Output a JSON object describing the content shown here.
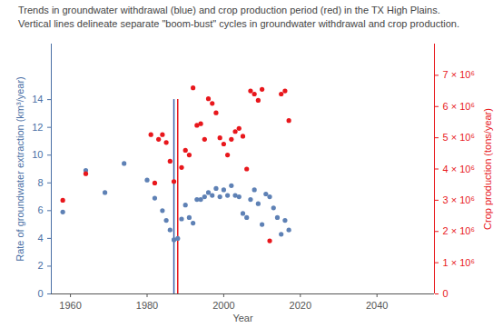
{
  "chart_data": {
    "type": "scatter",
    "title": "Trends in groundwater withdrawal (blue) and crop production period (red) in the TX High Plains.",
    "subtitle": "Vertical lines delineate separate \"boom-bust\" cycles in groundwater withdrawal and crop production.",
    "x_label": "Year",
    "y_label": "Rate of groundwater extraction (km³/year)",
    "y2_label": "Crop production (tons/year)",
    "xlim": [
      1955,
      2055
    ],
    "xticks": [
      1960,
      1980,
      2000,
      2020,
      2040
    ],
    "ylim": [
      0,
      18
    ],
    "yticks": [
      0,
      2,
      4,
      6,
      8,
      10,
      12,
      14
    ],
    "y2lim": [
      0,
      8000000
    ],
    "y2ticks": [
      {
        "value": 0,
        "label": "0"
      },
      {
        "value": 1000000,
        "label": "1 × 10⁶"
      },
      {
        "value": 2000000,
        "label": "2 × 10⁶"
      },
      {
        "value": 3000000,
        "label": "3 × 10⁶"
      },
      {
        "value": 4000000,
        "label": "4 × 10⁶"
      },
      {
        "value": 5000000,
        "label": "5 × 10⁶"
      },
      {
        "value": 6000000,
        "label": "6 × 10⁶"
      },
      {
        "value": 7000000,
        "label": "7 × 10⁶"
      }
    ],
    "series": [
      {
        "color": "#5e81b5",
        "marker": "circle",
        "axis": "y",
        "x": [
          1958,
          1964,
          1969,
          1974,
          1980,
          1982,
          1984,
          1985,
          1986,
          1987,
          1988,
          1989,
          1990,
          1991,
          1992,
          1993,
          1994,
          1995,
          1996,
          1997,
          1998,
          1999,
          2000,
          2001,
          2002,
          2003,
          2004,
          2005,
          2006,
          2007,
          2008,
          2009,
          2010,
          2011,
          2012,
          2013,
          2014,
          2015,
          2016,
          2017
        ],
        "values": [
          5.9,
          8.9,
          7.3,
          9.4,
          8.2,
          6.9,
          6.0,
          5.3,
          4.6,
          3.9,
          4.0,
          5.4,
          6.4,
          5.5,
          5.1,
          6.8,
          6.8,
          7.0,
          7.3,
          7.1,
          7.6,
          7.0,
          7.5,
          7.1,
          7.8,
          7.1,
          7.0,
          5.8,
          5.5,
          6.8,
          7.5,
          6.5,
          5.0,
          7.2,
          7.0,
          6.2,
          5.5,
          4.3,
          5.3,
          4.6
        ]
      },
      {
        "color": "#e8171c",
        "marker": "circle",
        "axis": "y2",
        "x": [
          1958,
          1964,
          1981,
          1982,
          1983,
          1984,
          1985,
          1986,
          1987,
          1989,
          1990,
          1991,
          1992,
          1993,
          1994,
          1995,
          1996,
          1997,
          1998,
          1999,
          2000,
          2001,
          2002,
          2003,
          2004,
          2005,
          2006,
          2007,
          2008,
          2009,
          2010,
          2012,
          2015,
          2016,
          2017
        ],
        "values": [
          3000000,
          3850000,
          5100000,
          3550000,
          4950000,
          5100000,
          4850000,
          4250000,
          3600000,
          4050000,
          4600000,
          4450000,
          6600000,
          5400000,
          5450000,
          4950000,
          6250000,
          6100000,
          5800000,
          5000000,
          4800000,
          4450000,
          4950000,
          5200000,
          5300000,
          5050000,
          4000000,
          6500000,
          6400000,
          6200000,
          6550000,
          1700000,
          6400000,
          6500000,
          5550000
        ]
      }
    ],
    "vertical_lines": [
      {
        "x": 1987,
        "y": [
          0,
          14
        ],
        "color": "#3b5ea8"
      },
      {
        "x": 1988,
        "y": [
          0,
          14
        ],
        "color": "#e8171c"
      }
    ]
  }
}
